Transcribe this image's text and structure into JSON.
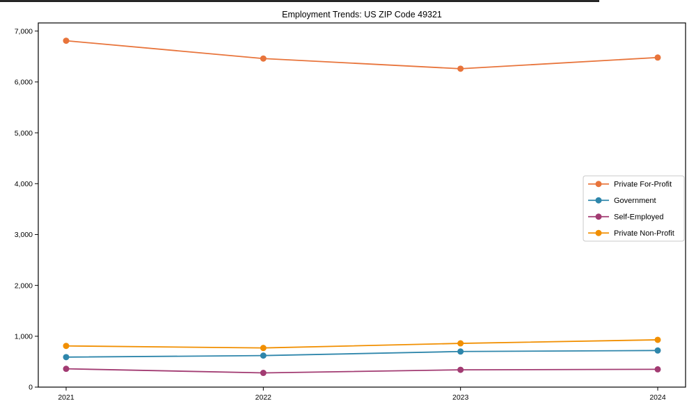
{
  "figure": {
    "title": "Employment Trends: US ZIP Code 49321",
    "background_color": "#ffffff",
    "spine_color": "#000000",
    "legend_border_color": "#c8c8c8"
  },
  "chart_data": {
    "type": "line",
    "title": "Employment Trends: US ZIP Code 49321",
    "categories": [
      "2021",
      "2022",
      "2023",
      "2024"
    ],
    "series": [
      {
        "name": "Private For-Profit",
        "color": "#E8743B",
        "values": [
          6810,
          6460,
          6260,
          6480
        ]
      },
      {
        "name": "Government",
        "color": "#2E86AB",
        "values": [
          590,
          620,
          700,
          720
        ]
      },
      {
        "name": "Self-Employed",
        "color": "#A23B72",
        "values": [
          360,
          280,
          340,
          350
        ]
      },
      {
        "name": "Private Non-Profit",
        "color": "#F18F01",
        "values": [
          810,
          770,
          860,
          930
        ]
      }
    ],
    "xlabel": "",
    "ylabel": "",
    "ylim": [
      0,
      7160
    ],
    "yticks": [
      0,
      1000,
      2000,
      3000,
      4000,
      5000,
      6000,
      7000
    ],
    "ytick_labels": [
      "0",
      "1,000",
      "2,000",
      "3,000",
      "4,000",
      "5,000",
      "6,000",
      "7,000"
    ],
    "grid": false,
    "legend_position": "center-right",
    "marker": "circle"
  }
}
